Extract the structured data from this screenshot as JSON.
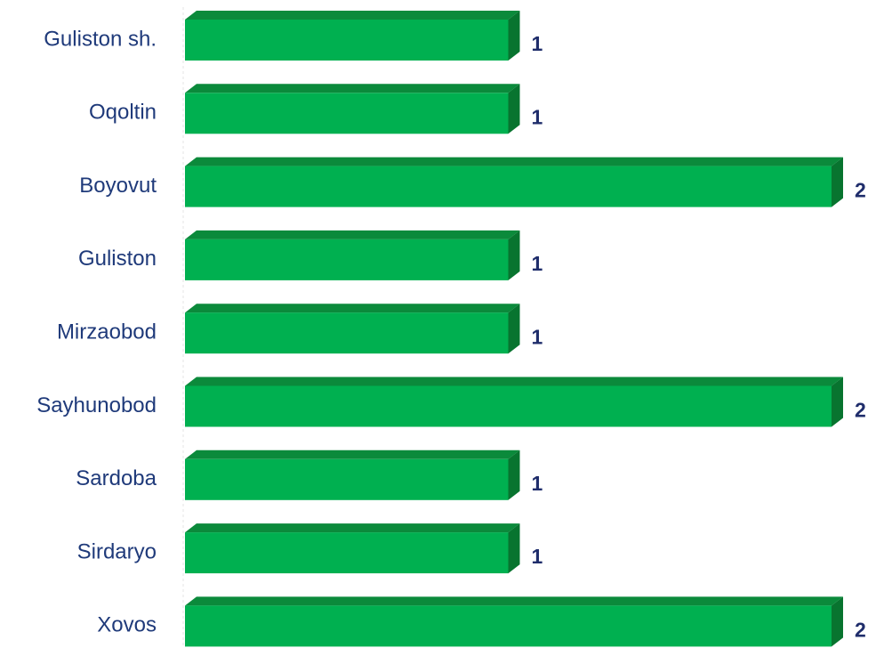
{
  "chart_data": {
    "type": "bar",
    "orientation": "horizontal",
    "categories": [
      "Guliston sh.",
      "Oqoltin",
      "Boyovut",
      "Guliston",
      "Mirzaobod",
      "Sayhunobod",
      "Sardoba",
      "Sirdaryo",
      "Xovos"
    ],
    "values": [
      1,
      1,
      2,
      1,
      1,
      2,
      1,
      1,
      2
    ],
    "color": "#00b050"
  }
}
